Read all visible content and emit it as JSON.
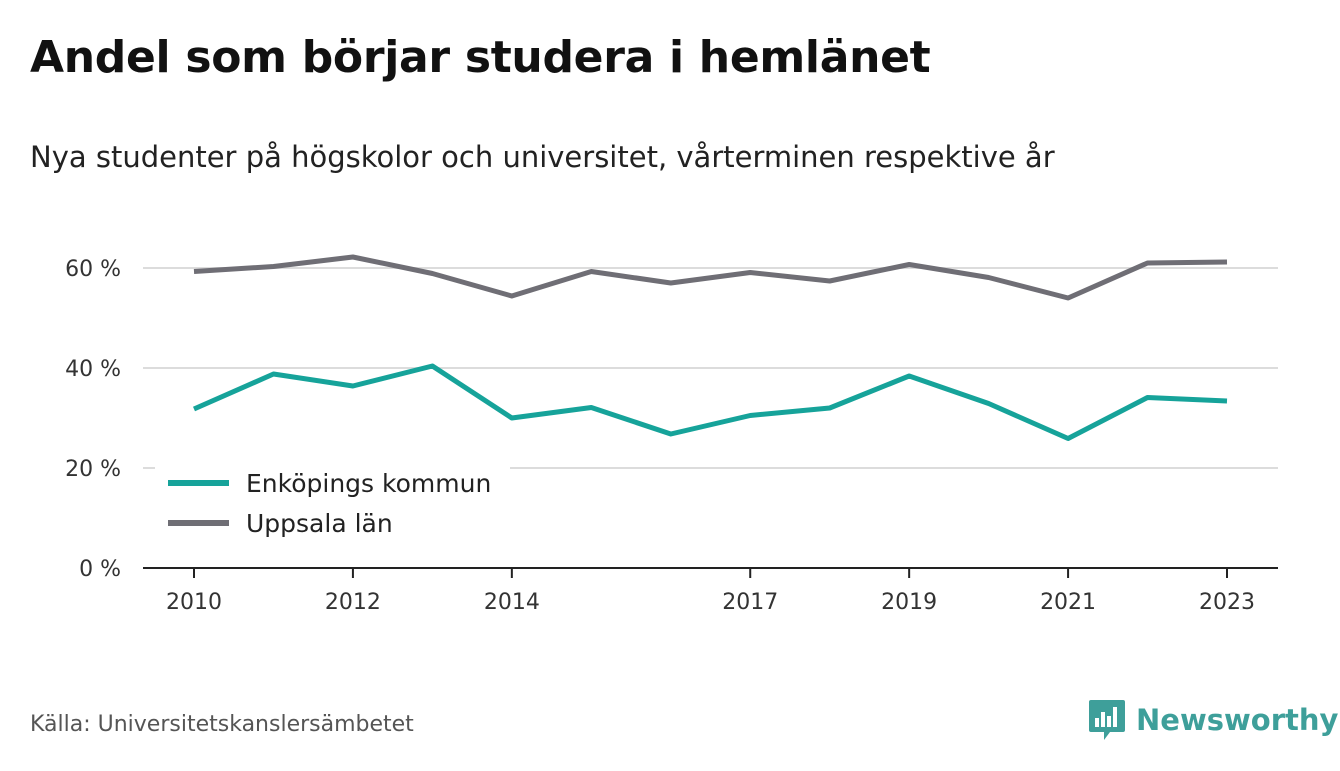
{
  "header": {
    "title": "Andel som börjar studera i hemlänet",
    "subtitle": "Nya studenter på högskolor och universitet, vårterminen respektive år"
  },
  "footer": {
    "source": "Källa: Universitetskanslersämbetet",
    "brand": "Newsworthy",
    "brand_icon": "bar-chart-speech-bubble-icon",
    "brand_color": "#3e9f9a"
  },
  "chart_data": {
    "type": "line",
    "x": [
      2010,
      2011,
      2012,
      2013,
      2014,
      2015,
      2016,
      2017,
      2018,
      2019,
      2020,
      2021,
      2022,
      2023
    ],
    "x_tick_labels": [
      "2010",
      "2012",
      "2014",
      "2017",
      "2019",
      "2021",
      "2023"
    ],
    "x_tick_values": [
      2010,
      2012,
      2014,
      2017,
      2019,
      2021,
      2023
    ],
    "y_tick_labels": [
      "0 %",
      "20 %",
      "40 %",
      "60 %"
    ],
    "y_tick_values": [
      0,
      20,
      40,
      60
    ],
    "ylim": [
      0,
      70
    ],
    "grid": true,
    "legend_position": "bottom-left",
    "series": [
      {
        "name": "Enköpings kommun",
        "color": "#16a39a",
        "values": [
          31.8,
          38.8,
          36.4,
          40.4,
          30.0,
          32.1,
          26.8,
          30.5,
          32.0,
          38.4,
          32.9,
          25.9,
          34.1,
          33.4
        ]
      },
      {
        "name": "Uppsala län",
        "color": "#6f6e75",
        "values": [
          59.3,
          60.3,
          62.2,
          58.9,
          54.4,
          59.3,
          57.0,
          59.1,
          57.4,
          60.7,
          58.1,
          54.0,
          61.0,
          61.2
        ]
      }
    ]
  }
}
